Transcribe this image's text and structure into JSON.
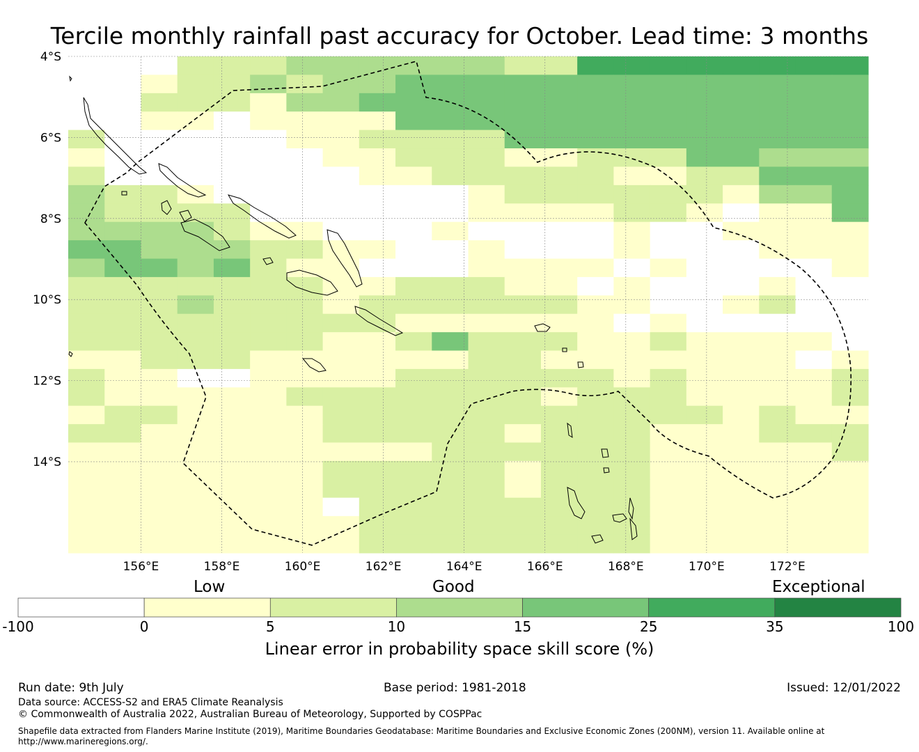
{
  "title": "Tercile monthly rainfall past accuracy for October. Lead time: 3 months",
  "map": {
    "lon_range": [
      154.2,
      174.0
    ],
    "lat_range": [
      -16.25,
      -4.0
    ],
    "cell_size_deg": 0.833,
    "lon_ticks": [
      {
        "value": 156,
        "label": "156°E"
      },
      {
        "value": 158,
        "label": "158°E"
      },
      {
        "value": 160,
        "label": "160°E"
      },
      {
        "value": 162,
        "label": "162°E"
      },
      {
        "value": 164,
        "label": "164°E"
      },
      {
        "value": 166,
        "label": "166°E"
      },
      {
        "value": 168,
        "label": "168°E"
      },
      {
        "value": 170,
        "label": "170°E"
      },
      {
        "value": 172,
        "label": "172°E"
      }
    ],
    "lat_ticks": [
      {
        "value": -4,
        "label": "4°S"
      },
      {
        "value": -6,
        "label": "6°S"
      },
      {
        "value": -8,
        "label": "8°S"
      },
      {
        "value": -10,
        "label": "10°S"
      },
      {
        "value": -12,
        "label": "12°S"
      },
      {
        "value": -14,
        "label": "14°S"
      }
    ],
    "grid": true,
    "class_colors": [
      "#ffffff",
      "#ffffcc",
      "#d9f0a3",
      "#addd8e",
      "#78c679",
      "#41ab5d",
      "#238443"
    ],
    "skill_grid": [
      "0002223333332255555555",
      "0012232334444444444444",
      "0022213344444444444444",
      "0011011114444444444444",
      "2000001122224444444444",
      "1000000112221122244333",
      "2000000011222221122444",
      "3221000000012222221334",
      "3222200000011112210114",
      "3333211000100001001111",
      "4433322110010001000111",
      "3443421100011110100001",
      "2222222112221101000100",
      "2223222122222211001200",
      "2222222221111110100000",
      "2222222112422211211110",
      "1122211111122111111101",
      "2110011112222221211112",
      "2111112222222122211112",
      "1221111222222222221211",
      "2211111222221222111222",
      "1111111111222222111112",
      "1111111222221222111111",
      "1111111222221222111111",
      "1111111022222222111111",
      "1111111122222222111111",
      "1111111122222222111111"
    ]
  },
  "eez_boundary_name": "Maritime Boundaries (EEZ 200NM)",
  "colorbar": {
    "categories": [
      "Low",
      "Good",
      "Exceptional"
    ],
    "tick_labels": [
      "-100",
      "0",
      "5",
      "10",
      "15",
      "25",
      "35",
      "100"
    ],
    "label": "Linear error in probability space skill score (%)"
  },
  "footer": {
    "run_date": "Run date: 9th July",
    "base_period": "Base period: 1981-2018",
    "issued": "Issued: 12/01/2022",
    "data_source": "Data source: ACCESS-S2 and ERA5 Climate Reanalysis",
    "copyright": "© Commonwealth of Australia 2022, Australian Bureau of Meteorology, Supported by COSPPac",
    "shapefile_line1": "Shapefile data extracted from Flanders Marine Institute (2019), Maritime Boundaries Geodatabase: Maritime Boundaries and Exclusive Economic Zones (200NM), version 11. Available online at",
    "shapefile_line2": "http://www.marineregions.org/."
  }
}
